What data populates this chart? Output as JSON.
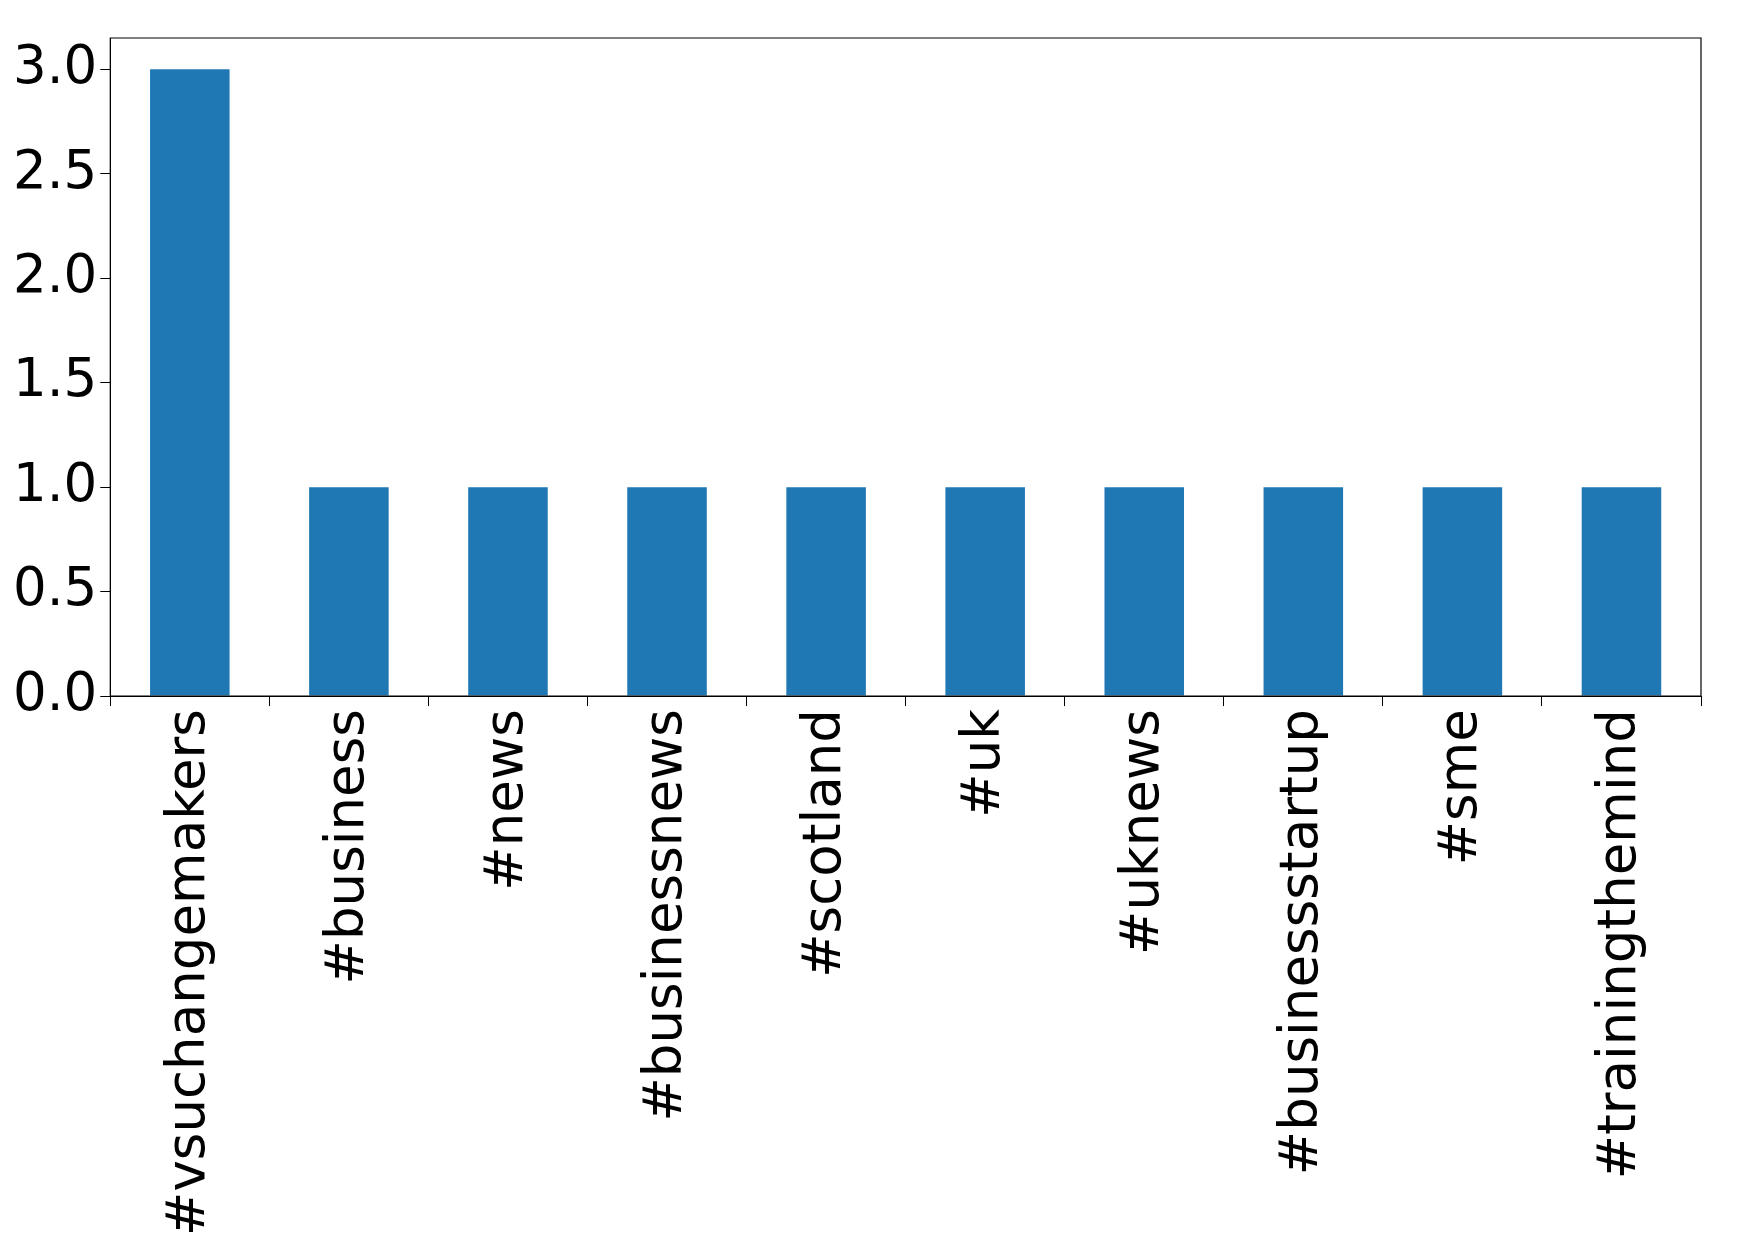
{
  "chart_data": {
    "type": "bar",
    "categories": [
      "#vsuchangemakers",
      "#business",
      "#news",
      "#businessnews",
      "#scotland",
      "#uk",
      "#uknews",
      "#businessstartup",
      "#sme",
      "#trainingthemind"
    ],
    "values": [
      3,
      1,
      1,
      1,
      1,
      1,
      1,
      1,
      1,
      1
    ],
    "color": "#1f77b4",
    "ylim": [
      0,
      3.15
    ],
    "yticks": [
      {
        "value": 0,
        "label": "0.0"
      },
      {
        "value": 0.5,
        "label": "0.5"
      },
      {
        "value": 1,
        "label": "1.0"
      },
      {
        "value": 1.5,
        "label": "1.5"
      },
      {
        "value": 2,
        "label": "2.0"
      },
      {
        "value": 2.5,
        "label": "2.5"
      },
      {
        "value": 3,
        "label": "3.0"
      }
    ],
    "grid": false,
    "legend": false
  }
}
